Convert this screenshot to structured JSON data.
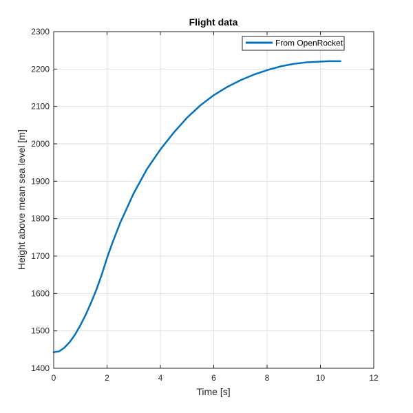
{
  "chart_data": {
    "type": "line",
    "title": "Flight data",
    "xlabel": "Time [s]",
    "ylabel": "Height above mean sea level [m]",
    "xlim": [
      0,
      12
    ],
    "ylim": [
      1400,
      2300
    ],
    "xticks": [
      0,
      2,
      4,
      6,
      8,
      10,
      12
    ],
    "yticks": [
      1400,
      1500,
      1600,
      1700,
      1800,
      1900,
      2000,
      2100,
      2200,
      2300
    ],
    "grid": true,
    "legend_position": "top-right",
    "series": [
      {
        "name": "From OpenRocket",
        "color": "#0072BD",
        "x": [
          0.0,
          0.2,
          0.4,
          0.6,
          0.8,
          1.0,
          1.2,
          1.4,
          1.6,
          1.8,
          2.0,
          2.2,
          2.5,
          3.0,
          3.5,
          4.0,
          4.5,
          5.0,
          5.5,
          6.0,
          6.5,
          7.0,
          7.5,
          8.0,
          8.5,
          9.0,
          9.5,
          10.0,
          10.3,
          10.5,
          10.75
        ],
        "y": [
          1443,
          1445,
          1455,
          1470,
          1490,
          1515,
          1543,
          1575,
          1610,
          1650,
          1695,
          1735,
          1790,
          1868,
          1933,
          1985,
          2030,
          2070,
          2103,
          2130,
          2152,
          2170,
          2185,
          2197,
          2207,
          2214,
          2218,
          2220,
          2221,
          2221,
          2221
        ]
      }
    ]
  }
}
